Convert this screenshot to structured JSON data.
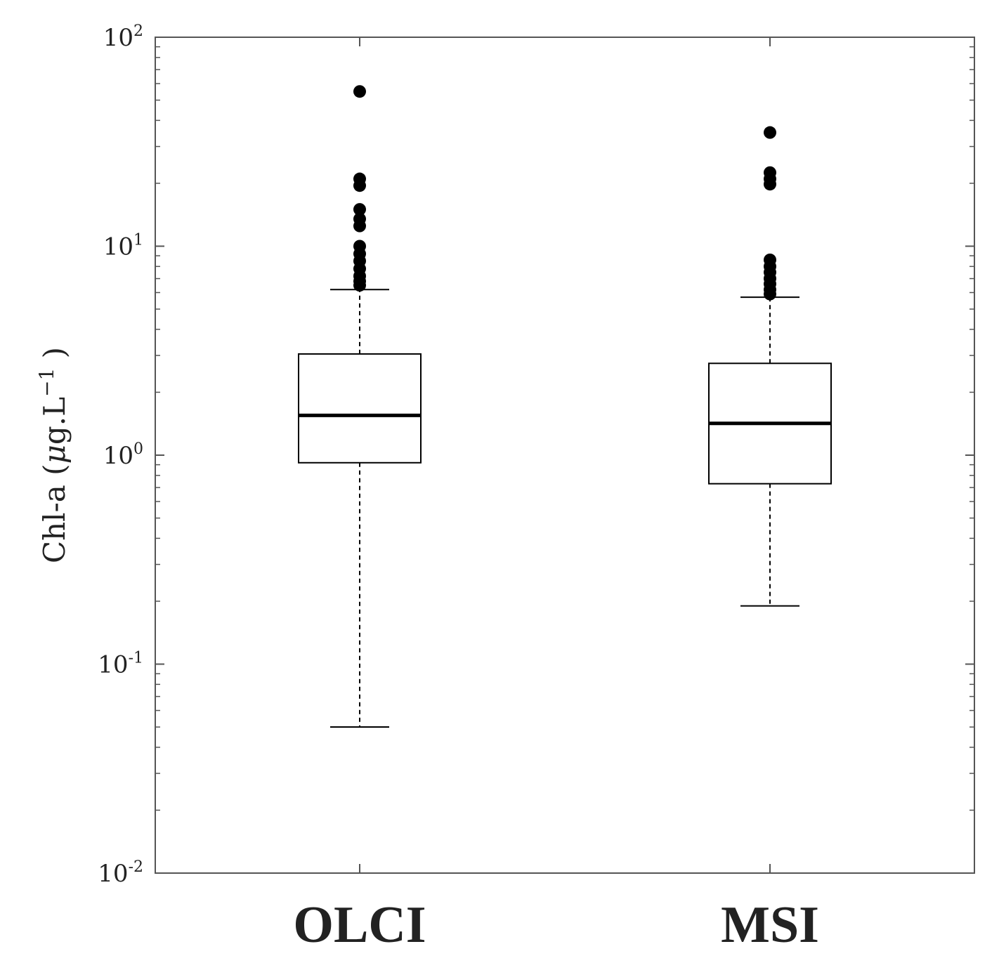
{
  "chart_data": {
    "type": "boxplot",
    "title": "",
    "xlabel": "",
    "ylabel": {
      "main": "Chl-a",
      "unit_mu": "μ",
      "unit_rest": "g.L",
      "unit_exp": "−1"
    },
    "yscale": "log",
    "ylim": [
      0.01,
      100
    ],
    "yticks": [
      {
        "value": 0.01,
        "base": "10",
        "exp": "-2"
      },
      {
        "value": 0.1,
        "base": "10",
        "exp": "-1"
      },
      {
        "value": 1,
        "base": "10",
        "exp": "0"
      },
      {
        "value": 10,
        "base": "10",
        "exp": "1"
      },
      {
        "value": 100,
        "base": "10",
        "exp": "2"
      }
    ],
    "categories": [
      "OLCI",
      "MSI"
    ],
    "boxes": [
      {
        "name": "OLCI",
        "whisker_low": 0.05,
        "q1": 0.92,
        "median": 1.55,
        "q3": 3.05,
        "whisker_high": 6.2,
        "outliers": [
          6.5,
          6.8,
          7.2,
          7.8,
          8.5,
          9.2,
          10.0,
          12.5,
          13.5,
          15.0,
          19.5,
          21.0,
          55.0
        ]
      },
      {
        "name": "MSI",
        "whisker_low": 0.19,
        "q1": 0.73,
        "median": 1.42,
        "q3": 2.75,
        "whisker_high": 5.7,
        "outliers": [
          5.9,
          6.2,
          6.6,
          7.0,
          7.5,
          8.0,
          8.6,
          19.8,
          21.0,
          22.5,
          35.0
        ]
      }
    ]
  }
}
